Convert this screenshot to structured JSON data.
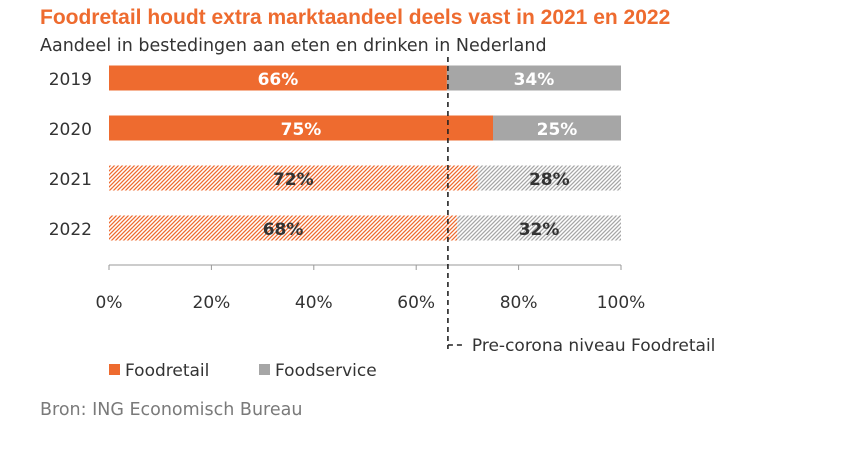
{
  "colors": {
    "title": "#ee6b2f",
    "foodretail": "#ee6b2f",
    "foodservice": "#a6a6a6",
    "hatch_bg": "#ffffff",
    "text": "#333333",
    "axis": "#999999",
    "source": "#7a7a7a"
  },
  "chart_data": {
    "type": "bar",
    "orientation": "horizontal",
    "stacked": true,
    "title": "Foodretail houdt extra marktaandeel deels vast in 2021 en 2022",
    "subtitle": "Aandeel in bestedingen aan eten en drinken in Nederland",
    "categories": [
      "2019",
      "2020",
      "2021",
      "2022"
    ],
    "series": [
      {
        "name": "Foodretail",
        "values": [
          66,
          75,
          72,
          68
        ],
        "labels": [
          "66%",
          "75%",
          "72%",
          "68%"
        ],
        "hatched": [
          false,
          false,
          true,
          true
        ],
        "color": "#ee6b2f"
      },
      {
        "name": "Foodservice",
        "values": [
          34,
          25,
          28,
          32
        ],
        "labels": [
          "34%",
          "25%",
          "28%",
          "32%"
        ],
        "hatched": [
          false,
          false,
          true,
          true
        ],
        "color": "#a6a6a6"
      }
    ],
    "xlim": [
      0,
      100
    ],
    "xticks": [
      "0%",
      "20%",
      "40%",
      "60%",
      "80%",
      "100%"
    ],
    "reference_line": {
      "value": 66,
      "style": "dashed",
      "label": "Pre-corona niveau Foodretail"
    },
    "legend_position": "bottom-left",
    "grid": false
  },
  "source": "Bron: ING Economisch Bureau"
}
